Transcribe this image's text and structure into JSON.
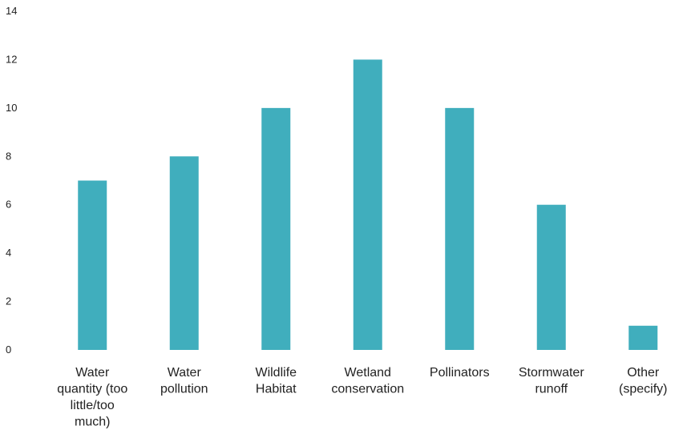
{
  "chart_data": {
    "type": "bar",
    "title": "",
    "xlabel": "",
    "ylabel": "",
    "ylim": [
      0,
      14
    ],
    "yticks": [
      0,
      2,
      4,
      6,
      8,
      10,
      12,
      14
    ],
    "grid": false,
    "legend": "none",
    "bar_color": "#40AEBD",
    "categories": [
      [
        "Water",
        "quantity (too",
        "little/too",
        "much)"
      ],
      [
        "Water",
        "pollution"
      ],
      [
        "Wildlife",
        "Habitat"
      ],
      [
        "Wetland",
        "conservation"
      ],
      [
        "Pollinators"
      ],
      [
        "Stormwater",
        "runoff"
      ],
      [
        "Other",
        "(specify)"
      ]
    ],
    "values": [
      7,
      8,
      10,
      12,
      10,
      6,
      1
    ]
  }
}
